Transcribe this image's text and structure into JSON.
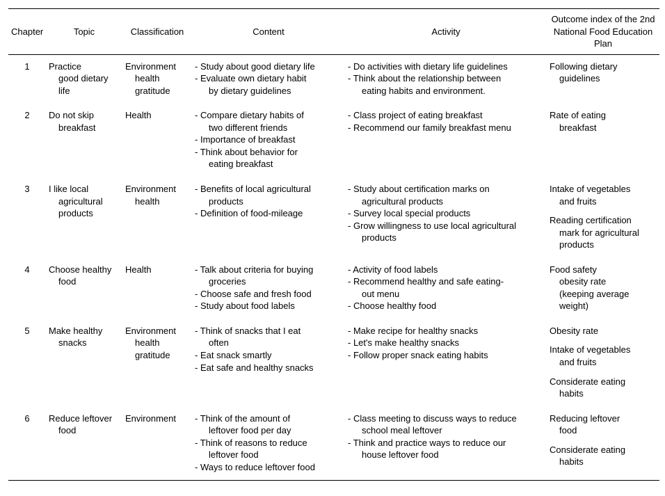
{
  "headers": {
    "chapter": "Chapter",
    "topic": "Topic",
    "classification": "Classification",
    "content": "Content",
    "activity": "Activity",
    "outcome": "Outcome index of the 2nd National Food Education Plan"
  },
  "rows": [
    {
      "chapter": "1",
      "topic": [
        "Practice",
        "good dietary",
        "life"
      ],
      "classification": [
        "Environment",
        "health",
        "gratitude"
      ],
      "content": [
        {
          "t": "bullet",
          "text": "Study about good dietary life"
        },
        {
          "t": "bullet",
          "text": "Evaluate own dietary habit"
        },
        {
          "t": "cont",
          "text": "by dietary guidelines"
        }
      ],
      "activity": [
        {
          "t": "bullet",
          "text": "Do activities with dietary life guidelines"
        },
        {
          "t": "bullet",
          "text": "Think about the relationship between"
        },
        {
          "t": "cont",
          "text": "eating habits and environment."
        }
      ],
      "outcome": [
        {
          "t": "plain",
          "text": "Following dietary"
        },
        {
          "t": "indent",
          "text": "guidelines"
        }
      ]
    },
    {
      "chapter": "2",
      "topic": [
        "Do not skip",
        "breakfast"
      ],
      "classification": [
        "Health"
      ],
      "content": [
        {
          "t": "bullet",
          "text": "Compare dietary habits of"
        },
        {
          "t": "cont",
          "text": "two different friends"
        },
        {
          "t": "bullet",
          "text": "Importance of breakfast"
        },
        {
          "t": "bullet",
          "text": "Think about behavior for"
        },
        {
          "t": "cont",
          "text": "eating breakfast"
        }
      ],
      "activity": [
        {
          "t": "bullet",
          "text": "Class project of eating breakfast"
        },
        {
          "t": "bullet",
          "text": "Recommend our family breakfast menu"
        }
      ],
      "outcome": [
        {
          "t": "plain",
          "text": "Rate of eating"
        },
        {
          "t": "indent",
          "text": "breakfast"
        }
      ]
    },
    {
      "chapter": "3",
      "topic": [
        "I like local",
        "agricultural",
        "products"
      ],
      "classification": [
        "Environment",
        "health"
      ],
      "content": [
        {
          "t": "bullet",
          "text": "Benefits of local agricultural"
        },
        {
          "t": "cont",
          "text": "products"
        },
        {
          "t": "bullet",
          "text": "Definition of food-mileage"
        }
      ],
      "activity": [
        {
          "t": "bullet",
          "text": "Study about certification marks on"
        },
        {
          "t": "cont",
          "text": "agricultural products"
        },
        {
          "t": "bullet",
          "text": "Survey local special products"
        },
        {
          "t": "bullet",
          "text": "Grow willingness to use local agricultural"
        },
        {
          "t": "cont",
          "text": "products"
        }
      ],
      "outcome": [
        {
          "t": "plain",
          "text": "Intake of vegetables"
        },
        {
          "t": "indent",
          "text": "and fruits"
        },
        {
          "t": "gap",
          "text": ""
        },
        {
          "t": "plain",
          "text": "Reading certification"
        },
        {
          "t": "indent",
          "text": "mark for agricultural"
        },
        {
          "t": "indent",
          "text": "products"
        }
      ]
    },
    {
      "chapter": "4",
      "topic": [
        "Choose healthy",
        "food"
      ],
      "classification": [
        "Health"
      ],
      "content": [
        {
          "t": "bullet",
          "text": "Talk about criteria for buying"
        },
        {
          "t": "cont",
          "text": "groceries"
        },
        {
          "t": "bullet",
          "text": "Choose safe and fresh food"
        },
        {
          "t": "bullet",
          "text": "Study about food labels"
        }
      ],
      "activity": [
        {
          "t": "bullet",
          "text": "Activity of food labels"
        },
        {
          "t": "bullet",
          "text": "Recommend healthy and safe eating-"
        },
        {
          "t": "cont",
          "text": "out menu"
        },
        {
          "t": "bullet",
          "text": "Choose healthy food"
        }
      ],
      "outcome": [
        {
          "t": "plain",
          "text": "Food safety"
        },
        {
          "t": "indent",
          "text": "obesity rate"
        },
        {
          "t": "indent",
          "text": "(keeping average"
        },
        {
          "t": "indent",
          "text": "weight)"
        }
      ]
    },
    {
      "chapter": "5",
      "topic": [
        "Make healthy",
        "snacks"
      ],
      "classification": [
        "Environment",
        "health",
        "gratitude"
      ],
      "content": [
        {
          "t": "bullet",
          "text": "Think of snacks that I eat"
        },
        {
          "t": "cont",
          "text": "often"
        },
        {
          "t": "bullet",
          "text": "Eat snack smartly"
        },
        {
          "t": "bullet",
          "text": "Eat safe and healthy snacks"
        }
      ],
      "activity": [
        {
          "t": "bullet",
          "text": "Make recipe for healthy snacks"
        },
        {
          "t": "bullet",
          "text": "Let's make healthy snacks"
        },
        {
          "t": "bullet",
          "text": "Follow proper snack eating habits"
        }
      ],
      "outcome": [
        {
          "t": "plain",
          "text": "Obesity rate"
        },
        {
          "t": "gap",
          "text": ""
        },
        {
          "t": "plain",
          "text": "Intake of vegetables"
        },
        {
          "t": "indent",
          "text": "and fruits"
        },
        {
          "t": "gap",
          "text": ""
        },
        {
          "t": "plain",
          "text": "Considerate eating"
        },
        {
          "t": "indent",
          "text": "habits"
        }
      ]
    },
    {
      "chapter": "6",
      "topic": [
        "Reduce leftover",
        "food"
      ],
      "classification": [
        "Environment"
      ],
      "content": [
        {
          "t": "bullet",
          "text": "Think of the amount of"
        },
        {
          "t": "cont",
          "text": "leftover food per day"
        },
        {
          "t": "bullet",
          "text": "Think of reasons to reduce"
        },
        {
          "t": "cont",
          "text": "leftover food"
        },
        {
          "t": "bullet",
          "text": "Ways to reduce leftover food"
        }
      ],
      "activity": [
        {
          "t": "bullet",
          "text": "Class meeting to discuss ways to reduce"
        },
        {
          "t": "cont",
          "text": "school meal leftover"
        },
        {
          "t": "bullet",
          "text": "Think and practice ways to reduce our"
        },
        {
          "t": "cont",
          "text": "house leftover food"
        }
      ],
      "outcome": [
        {
          "t": "plain",
          "text": "Reducing leftover"
        },
        {
          "t": "indent",
          "text": "food"
        },
        {
          "t": "gap",
          "text": ""
        },
        {
          "t": "plain",
          "text": "Considerate eating"
        },
        {
          "t": "indent",
          "text": "habits"
        }
      ]
    }
  ]
}
